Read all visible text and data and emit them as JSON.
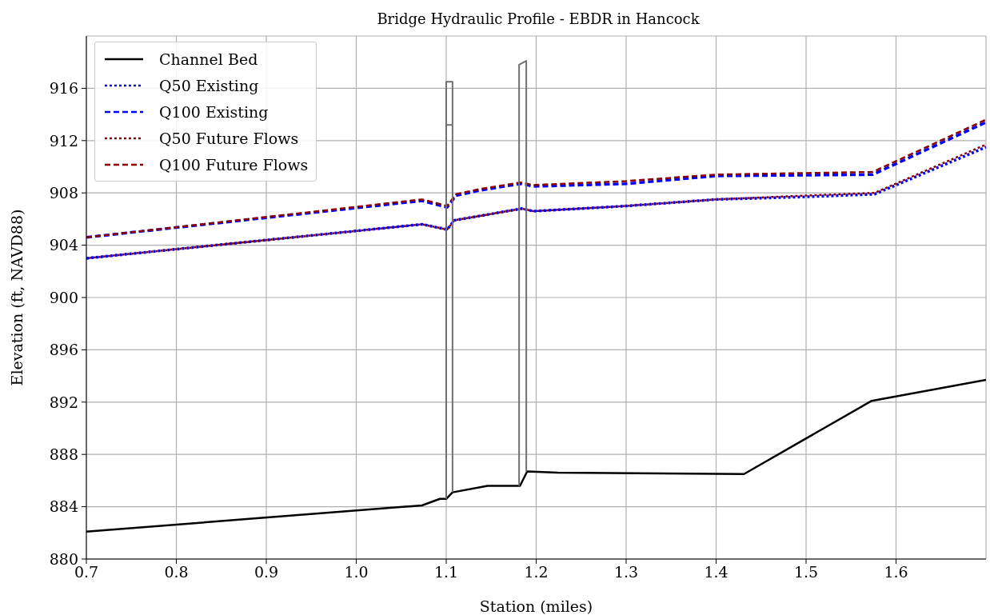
{
  "chart_data": {
    "type": "line",
    "title": "Bridge Hydraulic Profile - EBDR in Hancock",
    "xlabel": "Station (miles)",
    "ylabel": "Elevation (ft, NAVD88)",
    "xlim": [
      0.7,
      1.7
    ],
    "xticks": [
      0.7,
      0.8,
      0.9,
      {
        "value": 1.0,
        "label": "1.0"
      },
      1.1,
      1.2,
      1.3,
      1.4,
      1.5,
      1.6
    ],
    "ylim": [
      880,
      920
    ],
    "yticks": [
      880,
      884,
      888,
      892,
      896,
      900,
      904,
      908,
      912,
      916
    ],
    "grid": true,
    "legend": "top left",
    "series": [
      {
        "name": "Channel Bed",
        "color": "#000000",
        "line_style": "solid",
        "x": [
          0.7,
          1.073,
          1.093,
          1.1,
          1.107,
          1.146,
          1.182,
          1.19,
          1.224,
          1.431,
          1.573,
          1.7
        ],
        "values": [
          882.1,
          884.1,
          884.6,
          884.6,
          885.1,
          885.6,
          885.6,
          886.7,
          886.6,
          886.5,
          892.1,
          893.7
        ]
      },
      {
        "name": "Q50 Existing",
        "color": "#0000ff",
        "line_style": "dotted",
        "x": [
          0.7,
          1.073,
          1.101,
          1.109,
          1.184,
          1.197,
          1.3,
          1.4,
          1.5,
          1.576,
          1.7
        ],
        "values": [
          903.0,
          905.6,
          905.2,
          905.9,
          906.8,
          906.6,
          907.0,
          907.5,
          907.7,
          907.9,
          911.5
        ]
      },
      {
        "name": "Q100 Existing",
        "color": "#0000ff",
        "line_style": "dashed",
        "x": [
          0.7,
          1.073,
          1.101,
          1.111,
          1.138,
          1.183,
          1.197,
          1.3,
          1.4,
          1.574,
          1.7
        ],
        "values": [
          904.6,
          907.4,
          906.9,
          907.8,
          908.2,
          908.7,
          908.5,
          908.7,
          909.3,
          909.4,
          913.4
        ]
      },
      {
        "name": "Q50 Future Flows",
        "color": "#8b0000",
        "line_style": "dotted",
        "x": [
          0.7,
          1.073,
          1.101,
          1.109,
          1.184,
          1.197,
          1.3,
          1.4,
          1.5,
          1.576,
          1.7
        ],
        "values": [
          903.0,
          905.6,
          905.2,
          905.9,
          906.8,
          906.6,
          907.0,
          907.5,
          907.8,
          908.0,
          911.7
        ]
      },
      {
        "name": "Q100 Future Flows",
        "color": "#8b0000",
        "line_style": "dashed",
        "x": [
          0.7,
          1.073,
          1.101,
          1.111,
          1.138,
          1.183,
          1.197,
          1.3,
          1.4,
          1.574,
          1.7
        ],
        "values": [
          904.6,
          907.5,
          907.0,
          907.9,
          908.3,
          908.8,
          908.6,
          908.9,
          909.4,
          909.6,
          913.6
        ]
      },
      {
        "type": "line",
        "color": "#707070",
        "line_style": "solid",
        "x": [
          1.1,
          1.1,
          1.107,
          1.107
        ],
        "values": [
          884.6,
          916.5,
          916.5,
          885.1
        ]
      },
      {
        "type": "line",
        "color": "#707070",
        "line_style": "solid",
        "x": [
          1.1,
          1.107
        ],
        "values": [
          913.2,
          913.2
        ]
      },
      {
        "type": "line",
        "color": "#707070",
        "line_style": "solid",
        "x": [
          1.181,
          1.181,
          1.189,
          1.189
        ],
        "values": [
          885.6,
          917.8,
          918.1,
          886.7
        ]
      }
    ]
  }
}
